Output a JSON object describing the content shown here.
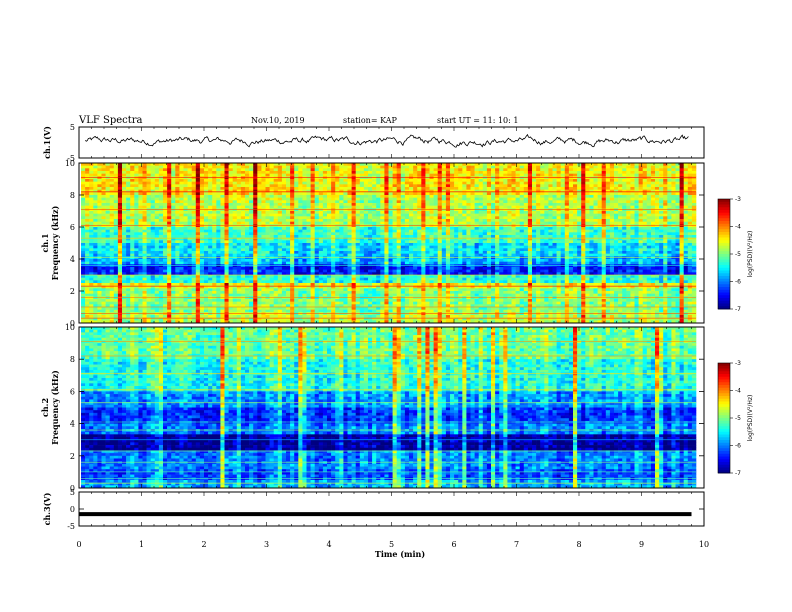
{
  "header": {
    "title": "VLF Spectra",
    "date": "Nov.10, 2019",
    "station": "station= KAP",
    "start_ut": "start  UT =   11: 10: 1"
  },
  "chart_data": [
    {
      "type": "line",
      "name": "ch1-waveform",
      "ylabel": "ch.1(V)",
      "ylim": [
        -5,
        5
      ],
      "yticks": [
        "5",
        "-5"
      ],
      "xlim": [
        0,
        10
      ],
      "note_levels": "noisy waveform oscillating roughly between -2 and 3 V",
      "approx_envelope": {
        "min": -2,
        "max": 3,
        "mean": 0.5
      }
    },
    {
      "type": "heatmap",
      "name": "ch1-spectrogram",
      "ylabel": "ch.1\nFrequency (kHz)",
      "ylabel_line1": "ch.1",
      "ylabel_line2": "Frequency (kHz)",
      "ylim": [
        0,
        10
      ],
      "yticks": [
        "0",
        "2",
        "4",
        "6",
        "8",
        "10"
      ],
      "xlim": [
        0,
        10
      ],
      "colorbar": {
        "min": -7,
        "max": -3,
        "ticks": [
          "-3",
          "-4",
          "-5",
          "-6",
          "-7"
        ],
        "label": "log(PSD)(V²/Hz)"
      },
      "bands": [
        {
          "from": 0,
          "to": 0.6,
          "level": -4.8
        },
        {
          "from": 0.6,
          "to": 1.5,
          "level": -5.0
        },
        {
          "from": 1.5,
          "to": 2.2,
          "level": -5.0
        },
        {
          "from": 2.2,
          "to": 2.5,
          "level": -4.6
        },
        {
          "from": 2.5,
          "to": 3.0,
          "level": -5.4
        },
        {
          "from": 3.0,
          "to": 3.6,
          "level": -6.4
        },
        {
          "from": 3.6,
          "to": 4.2,
          "level": -5.8
        },
        {
          "from": 4.2,
          "to": 5.0,
          "level": -5.6
        },
        {
          "from": 5.0,
          "to": 6.0,
          "level": -5.3
        },
        {
          "from": 6.0,
          "to": 8.0,
          "level": -4.8
        },
        {
          "from": 8.0,
          "to": 10.0,
          "level": -4.5
        }
      ]
    },
    {
      "type": "heatmap",
      "name": "ch2-spectrogram",
      "ylabel": "ch.2\nFrequency (kHz)",
      "ylabel_line1": "ch.2",
      "ylabel_line2": "Frequency (kHz)",
      "ylim": [
        0,
        10
      ],
      "yticks": [
        "0",
        "2",
        "4",
        "6",
        "8",
        "10"
      ],
      "xlim": [
        0,
        10
      ],
      "colorbar": {
        "min": -7,
        "max": -3,
        "ticks": [
          "-3",
          "-4",
          "-5",
          "-6",
          "-7"
        ],
        "label": "log(PSD)(V²/Hz)"
      },
      "bands": [
        {
          "from": 0,
          "to": 0.5,
          "level": -5.8
        },
        {
          "from": 0.5,
          "to": 1.2,
          "level": -6.2
        },
        {
          "from": 1.2,
          "to": 2.4,
          "level": -6.0
        },
        {
          "from": 2.4,
          "to": 3.4,
          "level": -6.9
        },
        {
          "from": 3.4,
          "to": 4.0,
          "level": -6.0
        },
        {
          "from": 4.0,
          "to": 5.0,
          "level": -6.3
        },
        {
          "from": 5.0,
          "to": 6.0,
          "level": -5.9
        },
        {
          "from": 6.0,
          "to": 8.0,
          "level": -5.4
        },
        {
          "from": 8.0,
          "to": 10.0,
          "level": -5.1
        }
      ]
    },
    {
      "type": "line",
      "name": "ch3-waveform",
      "ylabel": "ch.3(V)",
      "ylim": [
        -5,
        5
      ],
      "yticks": [
        "5",
        "0",
        "-5"
      ],
      "xlim": [
        0,
        10
      ],
      "xlabel": "Time (min)",
      "xticks": [
        "0",
        "1",
        "2",
        "3",
        "4",
        "5",
        "6",
        "7",
        "8",
        "9",
        "10"
      ],
      "constant_value": -1.5,
      "data_end_min": 9.8
    }
  ]
}
